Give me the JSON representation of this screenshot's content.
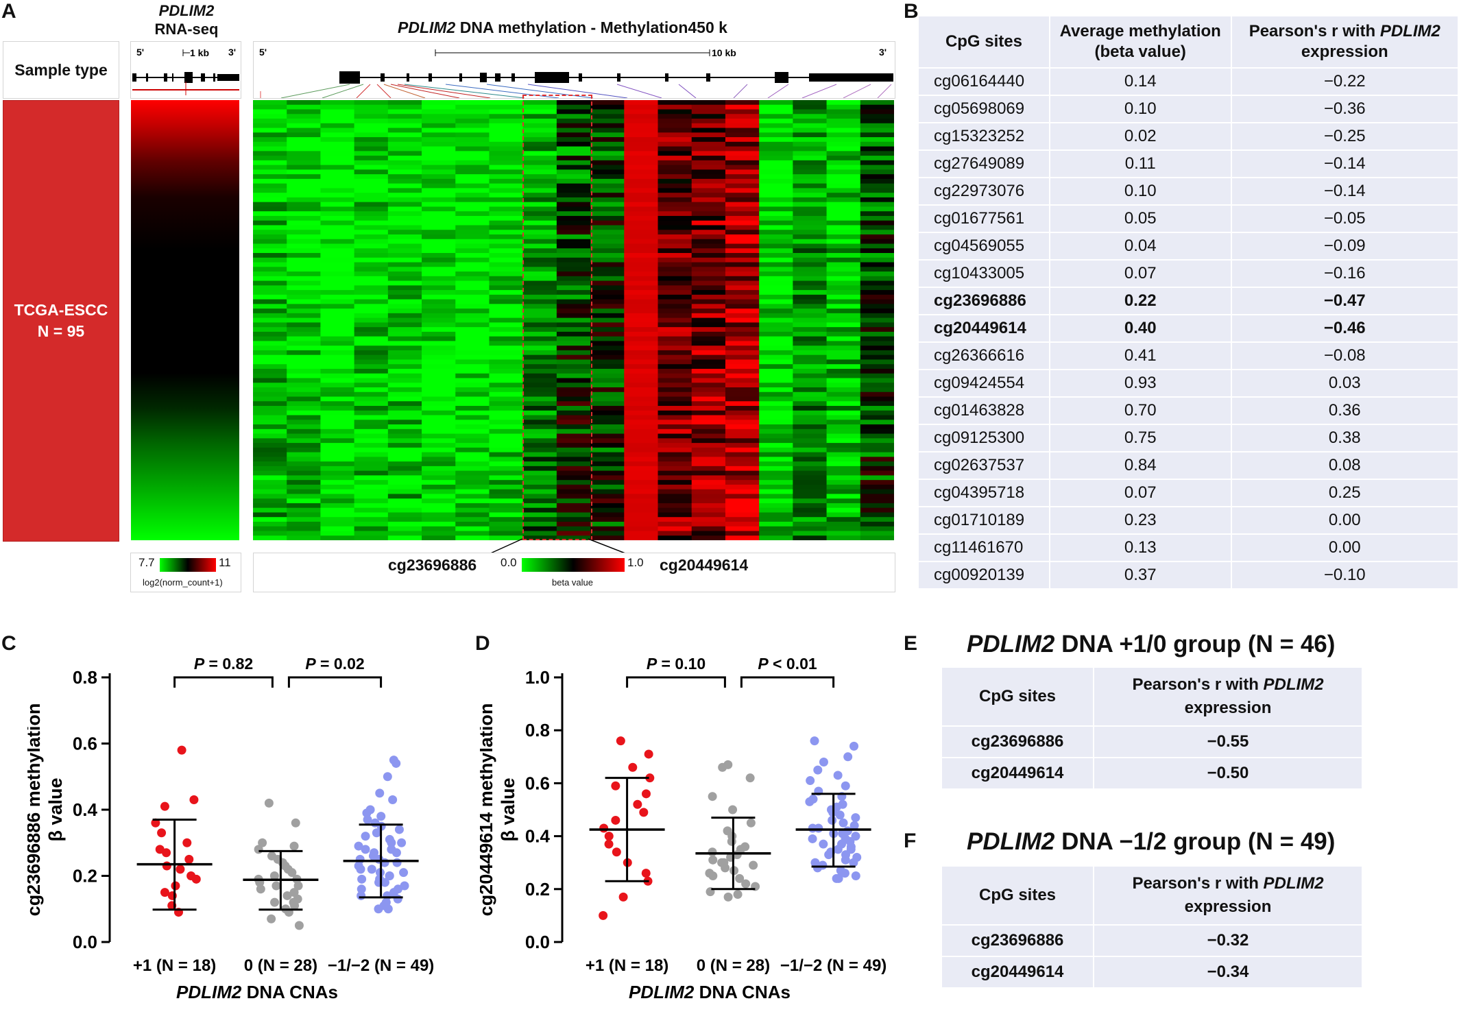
{
  "panelA": {
    "letter": "A",
    "sample_type_label": "Sample type",
    "cohort_label": "TCGA-ESCC",
    "cohort_n": "N = 95",
    "rna_title_gene": "PDLIM2",
    "rna_title_rest": "RNA-seq",
    "rna_scale_label": "1 kb",
    "rna_five": "5'",
    "rna_three": "3'",
    "meth_title_gene": "PDLIM2",
    "meth_title_rest": " DNA methylation - Methylation450 k",
    "meth_scale_label": "10 kb",
    "meth_five": "5'",
    "meth_three": "3'",
    "rna_legend_min": "7.7",
    "rna_legend_max": "11",
    "rna_legend_caption": "log2(norm_count+1)",
    "beta_legend_min": "0.0",
    "beta_legend_max": "1.0",
    "beta_legend_caption": "beta value",
    "callout_left": "cg23696886",
    "callout_right": "cg20449614",
    "colors": {
      "red": "#ff0000",
      "green": "#00ff00",
      "black": "#000000",
      "cohort": "#d42a2a"
    }
  },
  "panelB": {
    "letter": "B",
    "headers": [
      "CpG sites",
      "Average methylation (beta value)",
      "Pearson's r with PDLIM2 expression"
    ],
    "header_parts": {
      "h1": "CpG sites",
      "h2_line1": "Average methylation",
      "h2_line2": "(beta value)",
      "h3_line1_pre": "Pearson's r with ",
      "h3_line1_gene": "PDLIM2",
      "h3_line2": "expression"
    },
    "rows": [
      {
        "site": "cg06164440",
        "beta": "0.14",
        "r": "−0.22"
      },
      {
        "site": "cg05698069",
        "beta": "0.10",
        "r": "−0.36"
      },
      {
        "site": "cg15323252",
        "beta": "0.02",
        "r": "−0.25"
      },
      {
        "site": "cg27649089",
        "beta": "0.11",
        "r": "−0.14"
      },
      {
        "site": "cg22973076",
        "beta": "0.10",
        "r": "−0.14"
      },
      {
        "site": "cg01677561",
        "beta": "0.05",
        "r": "−0.05"
      },
      {
        "site": "cg04569055",
        "beta": "0.04",
        "r": "−0.09"
      },
      {
        "site": "cg10433005",
        "beta": "0.07",
        "r": "−0.16"
      },
      {
        "site": "cg23696886",
        "beta": "0.22",
        "r": "−0.47"
      },
      {
        "site": "cg20449614",
        "beta": "0.40",
        "r": "−0.46"
      },
      {
        "site": "cg26366616",
        "beta": "0.41",
        "r": "−0.08"
      },
      {
        "site": "cg09424554",
        "beta": "0.93",
        "r": "0.03"
      },
      {
        "site": "cg01463828",
        "beta": "0.70",
        "r": "0.36"
      },
      {
        "site": "cg09125300",
        "beta": "0.75",
        "r": "0.38"
      },
      {
        "site": "cg02637537",
        "beta": "0.84",
        "r": "0.08"
      },
      {
        "site": "cg04395718",
        "beta": "0.07",
        "r": "0.25"
      },
      {
        "site": "cg01710189",
        "beta": "0.23",
        "r": "0.00"
      },
      {
        "site": "cg11461670",
        "beta": "0.13",
        "r": "0.00"
      },
      {
        "site": "cg00920139",
        "beta": "0.37",
        "r": "−0.10"
      }
    ]
  },
  "chart_data": [
    {
      "panel": "C",
      "type": "scatter",
      "ylabel_line1": "cg23696886 methylation",
      "ylabel_line2": "β value",
      "xlabel_gene": "PDLIM2",
      "xlabel_rest": " DNA CNAs",
      "ylim": [
        0,
        0.8
      ],
      "yticks": [
        "0.0",
        "0.2",
        "0.4",
        "0.6",
        "0.8"
      ],
      "categories": [
        "+1 (N = 18)",
        "0 (N = 28)",
        "−1/−2 (N = 49)"
      ],
      "means": [
        0.235,
        0.188,
        0.245
      ],
      "sd_low": [
        0.098,
        0.098,
        0.135
      ],
      "sd_high": [
        0.37,
        0.275,
        0.355
      ],
      "colors": [
        "#e8141b",
        "#a0a0a0",
        "#8c96f0"
      ],
      "comparisons": [
        {
          "label_p": "P",
          "label_rest": " = 0.82",
          "from": 0,
          "to": 1
        },
        {
          "label_p": "P",
          "label_rest": " = 0.02",
          "from": 1,
          "to": 2
        }
      ],
      "points": [
        [
          0.58,
          0.43,
          0.41,
          0.36,
          0.33,
          0.3,
          0.28,
          0.27,
          0.25,
          0.23,
          0.22,
          0.2,
          0.19,
          0.17,
          0.15,
          0.14,
          0.11,
          0.09
        ],
        [
          0.42,
          0.36,
          0.3,
          0.29,
          0.28,
          0.26,
          0.25,
          0.24,
          0.23,
          0.22,
          0.21,
          0.2,
          0.19,
          0.19,
          0.18,
          0.17,
          0.17,
          0.16,
          0.15,
          0.14,
          0.13,
          0.12,
          0.12,
          0.11,
          0.1,
          0.09,
          0.07,
          0.05
        ],
        [
          0.55,
          0.54,
          0.5,
          0.45,
          0.43,
          0.4,
          0.39,
          0.38,
          0.37,
          0.36,
          0.35,
          0.34,
          0.33,
          0.32,
          0.31,
          0.3,
          0.3,
          0.29,
          0.28,
          0.28,
          0.27,
          0.27,
          0.26,
          0.25,
          0.25,
          0.24,
          0.24,
          0.23,
          0.22,
          0.22,
          0.21,
          0.21,
          0.2,
          0.2,
          0.19,
          0.19,
          0.18,
          0.18,
          0.17,
          0.16,
          0.16,
          0.15,
          0.14,
          0.14,
          0.13,
          0.12,
          0.11,
          0.1,
          0.1
        ]
      ]
    },
    {
      "panel": "D",
      "type": "scatter",
      "ylabel_line1": "cg20449614 methylation",
      "ylabel_line2": "β value",
      "xlabel_gene": "PDLIM2",
      "xlabel_rest": " DNA CNAs",
      "ylim": [
        0,
        1.0
      ],
      "yticks": [
        "0.0",
        "0.2",
        "0.4",
        "0.6",
        "0.8",
        "1.0"
      ],
      "categories": [
        "+1 (N = 18)",
        "0 (N = 28)",
        "−1/−2 (N = 49)"
      ],
      "means": [
        0.425,
        0.335,
        0.425
      ],
      "sd_low": [
        0.23,
        0.2,
        0.285
      ],
      "sd_high": [
        0.62,
        0.47,
        0.56
      ],
      "colors": [
        "#e8141b",
        "#a0a0a0",
        "#8c96f0"
      ],
      "comparisons": [
        {
          "label_p": "P",
          "label_rest": " = 0.10",
          "from": 0,
          "to": 1
        },
        {
          "label_p": "P",
          "label_rest": " < 0.01",
          "from": 1,
          "to": 2
        }
      ],
      "points": [
        [
          0.76,
          0.71,
          0.66,
          0.62,
          0.59,
          0.56,
          0.52,
          0.49,
          0.46,
          0.43,
          0.4,
          0.37,
          0.34,
          0.3,
          0.26,
          0.23,
          0.17,
          0.1
        ],
        [
          0.67,
          0.66,
          0.62,
          0.55,
          0.5,
          0.45,
          0.42,
          0.4,
          0.38,
          0.36,
          0.35,
          0.34,
          0.33,
          0.32,
          0.31,
          0.3,
          0.3,
          0.29,
          0.28,
          0.27,
          0.26,
          0.25,
          0.24,
          0.22,
          0.21,
          0.19,
          0.18,
          0.17
        ],
        [
          0.76,
          0.74,
          0.7,
          0.68,
          0.65,
          0.63,
          0.61,
          0.59,
          0.57,
          0.55,
          0.54,
          0.53,
          0.52,
          0.51,
          0.5,
          0.49,
          0.48,
          0.47,
          0.46,
          0.45,
          0.44,
          0.43,
          0.43,
          0.42,
          0.41,
          0.41,
          0.4,
          0.39,
          0.39,
          0.38,
          0.37,
          0.37,
          0.36,
          0.35,
          0.35,
          0.34,
          0.33,
          0.33,
          0.32,
          0.31,
          0.3,
          0.3,
          0.29,
          0.28,
          0.27,
          0.26,
          0.25,
          0.24,
          0.24
        ]
      ]
    }
  ],
  "panelE": {
    "letter": "E",
    "title_gene": "PDLIM2",
    "title_rest": " DNA +1/0 group (N = 46)",
    "h1": "CpG sites",
    "h2_line1_pre": "Pearson's r with ",
    "h2_line1_gene": "PDLIM2",
    "h2_line2": "expression",
    "rows": [
      {
        "site": "cg23696886",
        "r": "−0.55"
      },
      {
        "site": "cg20449614",
        "r": "−0.50"
      }
    ]
  },
  "panelF": {
    "letter": "F",
    "title_gene": "PDLIM2",
    "title_rest": " DNA −1/2 group (N = 49)",
    "h1": "CpG sites",
    "h2_line1_pre": "Pearson's r with ",
    "h2_line1_gene": "PDLIM2",
    "h2_line2": "expression",
    "rows": [
      {
        "site": "cg23696886",
        "r": "−0.32"
      },
      {
        "site": "cg20449614",
        "r": "−0.34"
      }
    ]
  },
  "letters": {
    "C": "C",
    "D": "D"
  }
}
